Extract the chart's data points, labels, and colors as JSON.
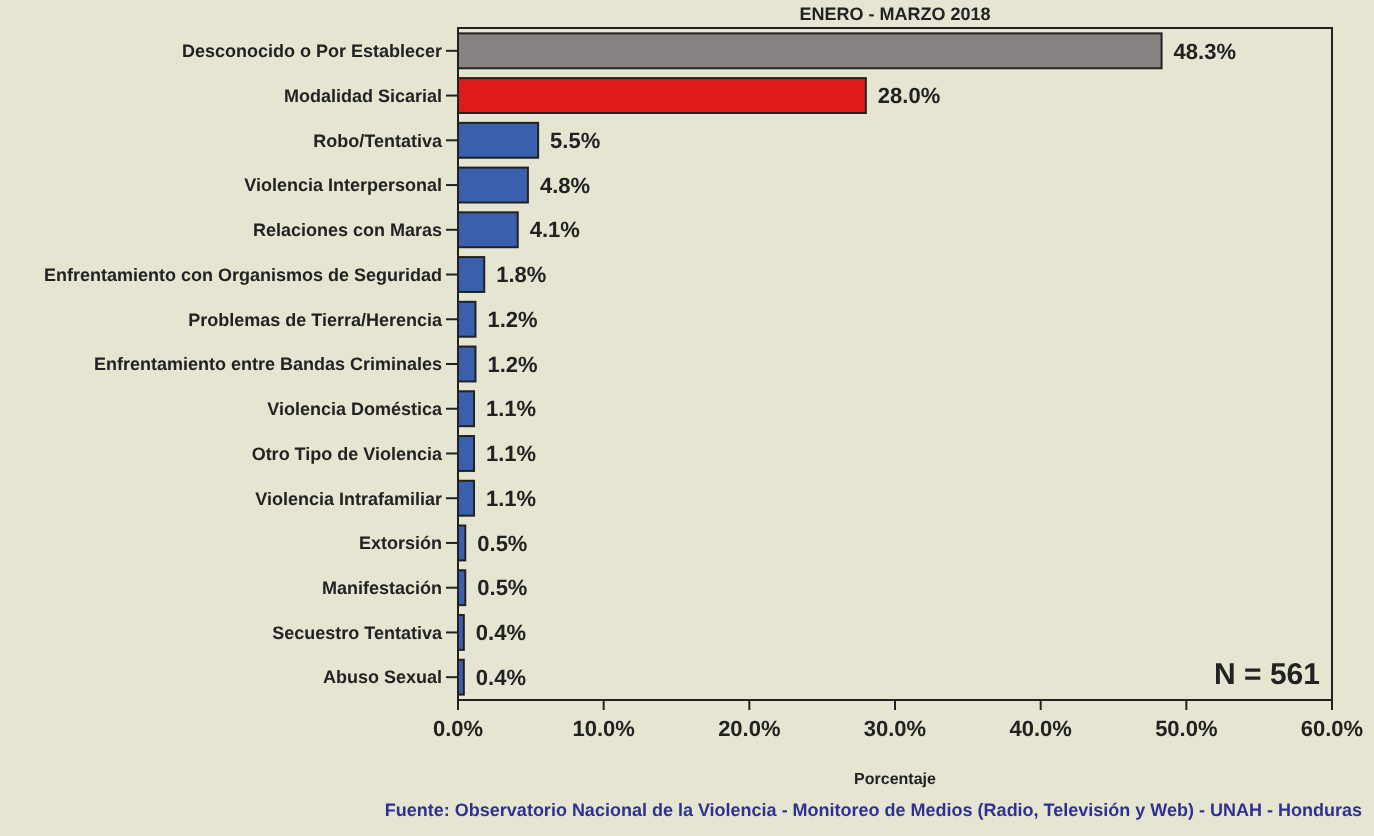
{
  "chart_data": {
    "type": "bar",
    "orientation": "horizontal",
    "title": "ENERO - MARZO 2018",
    "xlabel": "Porcentaje",
    "categories": [
      "Desconocido o Por Establecer",
      "Modalidad Sicarial",
      "Robo/Tentativa",
      "Violencia Interpersonal",
      "Relaciones con Maras",
      "Enfrentamiento con Organismos de Seguridad",
      "Problemas de Tierra/Herencia",
      "Enfrentamiento entre Bandas Criminales",
      "Violencia Doméstica",
      "Otro Tipo de Violencia",
      "Violencia Intrafamiliar",
      "Extorsión",
      "Manifestación",
      "Secuestro Tentativa",
      "Abuso Sexual"
    ],
    "values": [
      48.3,
      28.0,
      5.5,
      4.8,
      4.1,
      1.8,
      1.2,
      1.2,
      1.1,
      1.1,
      1.1,
      0.5,
      0.5,
      0.4,
      0.4
    ],
    "colors": [
      "#878383",
      "#e01b1b",
      "#3a5fac",
      "#3a5fac",
      "#3a5fac",
      "#3a5fac",
      "#3a5fac",
      "#3a5fac",
      "#3a5fac",
      "#3a5fac",
      "#3a5fac",
      "#3a5fac",
      "#3a5fac",
      "#3a5fac",
      "#3a5fac"
    ],
    "value_labels": [
      "48.3%",
      "28.0%",
      "5.5%",
      "4.8%",
      "4.1%",
      "1.8%",
      "1.2%",
      "1.2%",
      "1.1%",
      "1.1%",
      "1.1%",
      "0.5%",
      "0.5%",
      "0.4%",
      "0.4%"
    ],
    "xlim": [
      0,
      60
    ],
    "xticks": [
      {
        "value": 0,
        "label": "0.0%"
      },
      {
        "value": 10,
        "label": "10.0%"
      },
      {
        "value": 20,
        "label": "20.0%"
      },
      {
        "value": 30,
        "label": "30.0%"
      },
      {
        "value": 40,
        "label": "40.0%"
      },
      {
        "value": 50,
        "label": "50.0%"
      },
      {
        "value": 60,
        "label": "60.0%"
      }
    ],
    "annotations": [
      "N = 561",
      "Fuente: Observatorio Nacional de la Violencia - Monitoreo de Medios (Radio, Televisión y Web) - UNAH - Honduras"
    ]
  }
}
